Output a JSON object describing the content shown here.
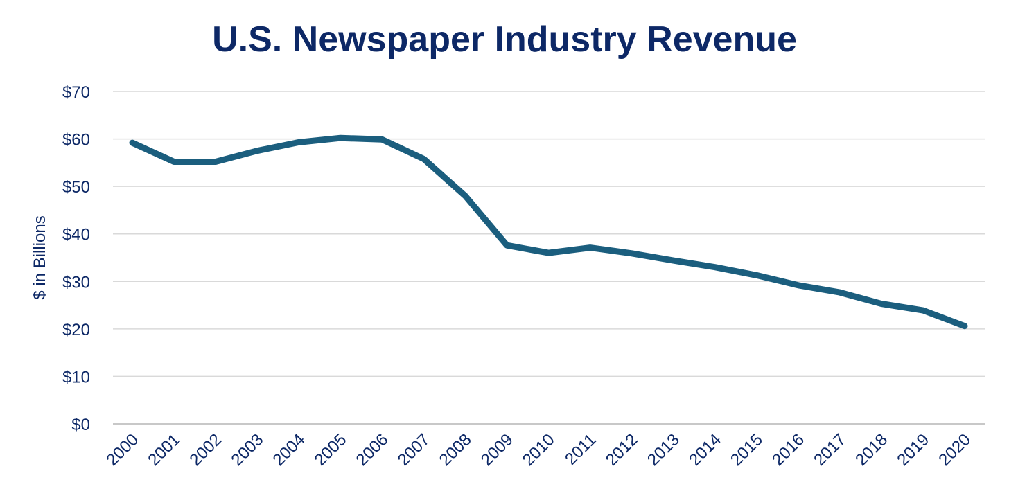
{
  "chart_data": {
    "type": "line",
    "title": "U.S. Newspaper Industry Revenue",
    "xlabel": "",
    "ylabel": "$ in Billions",
    "ylim": [
      0,
      70
    ],
    "y_ticks": [
      0,
      10,
      20,
      30,
      40,
      50,
      60,
      70
    ],
    "y_tick_labels": [
      "$0",
      "$10",
      "$20",
      "$30",
      "$40",
      "$50",
      "$60",
      "$70"
    ],
    "grid": true,
    "legend": "none",
    "line_color": "#1b5e7e",
    "title_color": "#0d2866",
    "categories": [
      "2000",
      "2001",
      "2002",
      "2003",
      "2004",
      "2005",
      "2006",
      "2007",
      "2008",
      "2009",
      "2010",
      "2011",
      "2012",
      "2013",
      "2014",
      "2015",
      "2016",
      "2017",
      "2018",
      "2019",
      "2020"
    ],
    "series": [
      {
        "name": "Revenue",
        "values": [
          59.2,
          55.2,
          55.2,
          57.5,
          59.3,
          60.2,
          59.9,
          55.8,
          48.0,
          37.6,
          36.0,
          37.1,
          35.9,
          34.4,
          33.0,
          31.3,
          29.2,
          27.7,
          25.3,
          23.9,
          20.6
        ]
      }
    ]
  }
}
